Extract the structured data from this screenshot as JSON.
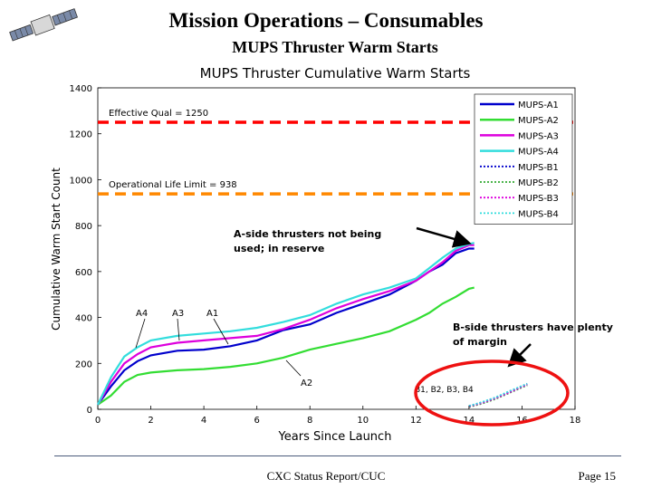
{
  "slide": {
    "title": "Mission Operations – Consumables",
    "subtitle": "MUPS Thruster Warm Starts",
    "footer_center": "CXC Status Report/CUC",
    "footer_right": "Page 15",
    "logo_icon": "satellite-icon"
  },
  "annotations": {
    "reserve_line1": "A-side thrusters not being",
    "reserve_line2": "used; in reserve",
    "margin_line1": "B-side thrusters have plenty",
    "margin_line2": "of margin",
    "b_label": "B1, B2, B3, B4",
    "a4": "A4",
    "a3": "A3",
    "a1": "A1",
    "a2": "A2"
  },
  "chart_data": {
    "type": "line",
    "title": "MUPS Thruster Cumulative Warm Starts",
    "xlabel": "Years Since Launch",
    "ylabel": "Cumulative Warm Start Count",
    "xlim": [
      0,
      18
    ],
    "ylim": [
      0,
      1400
    ],
    "xticks": [
      0,
      2,
      4,
      6,
      8,
      10,
      12,
      14,
      16,
      18
    ],
    "yticks": [
      0,
      200,
      400,
      600,
      800,
      1000,
      1200,
      1400
    ],
    "grid": false,
    "legend_position": "top-right",
    "reference_lines": [
      {
        "label": "Effective Qual = 1250",
        "y": 1250,
        "color": "#ff0000"
      },
      {
        "label": "Operational Life Limit = 938",
        "y": 938,
        "color": "#ff8800"
      }
    ],
    "series": [
      {
        "name": "MUPS-A1",
        "color": "#0000cc",
        "style": "solid",
        "x": [
          0,
          0.5,
          1,
          1.5,
          2,
          3,
          4,
          5,
          6,
          7,
          8,
          9,
          10,
          11,
          12,
          12.5,
          13,
          13.5,
          14,
          14.2
        ],
        "y": [
          20,
          100,
          170,
          210,
          235,
          255,
          260,
          275,
          300,
          345,
          370,
          420,
          460,
          500,
          560,
          600,
          630,
          680,
          700,
          700
        ]
      },
      {
        "name": "MUPS-A2",
        "color": "#33dd33",
        "style": "solid",
        "x": [
          0,
          0.5,
          1,
          1.5,
          2,
          3,
          4,
          5,
          6,
          7,
          8,
          9,
          10,
          11,
          12,
          12.5,
          13,
          13.5,
          14,
          14.2
        ],
        "y": [
          20,
          60,
          120,
          150,
          160,
          170,
          175,
          185,
          200,
          225,
          260,
          285,
          310,
          340,
          390,
          420,
          460,
          490,
          525,
          530
        ]
      },
      {
        "name": "MUPS-A3",
        "color": "#dd00dd",
        "style": "solid",
        "x": [
          0,
          0.5,
          1,
          1.5,
          2,
          3,
          4,
          5,
          6,
          7,
          8,
          9,
          10,
          11,
          12,
          12.5,
          13,
          13.5,
          14,
          14.2
        ],
        "y": [
          20,
          120,
          200,
          240,
          270,
          290,
          300,
          310,
          320,
          350,
          390,
          440,
          480,
          515,
          560,
          600,
          640,
          690,
          715,
          715
        ]
      },
      {
        "name": "MUPS-A4",
        "color": "#33dddd",
        "style": "solid",
        "x": [
          0,
          0.5,
          1,
          1.5,
          2,
          3,
          4,
          5,
          6,
          7,
          8,
          9,
          10,
          11,
          12,
          12.5,
          13,
          13.5,
          14,
          14.2
        ],
        "y": [
          20,
          140,
          230,
          270,
          300,
          320,
          330,
          340,
          355,
          380,
          410,
          460,
          500,
          530,
          570,
          615,
          660,
          700,
          720,
          725
        ]
      },
      {
        "name": "MUPS-B1",
        "color": "#0000cc",
        "style": "dotted",
        "x": [
          14,
          14.5,
          15,
          15.5,
          16,
          16.2
        ],
        "y": [
          15,
          30,
          50,
          75,
          100,
          110
        ]
      },
      {
        "name": "MUPS-B2",
        "color": "#33aa33",
        "style": "dotted",
        "x": [
          14,
          14.5,
          15,
          15.5,
          16,
          16.2
        ],
        "y": [
          10,
          25,
          45,
          70,
          95,
          105
        ]
      },
      {
        "name": "MUPS-B3",
        "color": "#dd00dd",
        "style": "dotted",
        "x": [
          14,
          14.5,
          15,
          15.5,
          16,
          16.2
        ],
        "y": [
          12,
          28,
          48,
          72,
          98,
          108
        ]
      },
      {
        "name": "MUPS-B4",
        "color": "#33dddd",
        "style": "dotted",
        "x": [
          14,
          14.5,
          15,
          15.5,
          16,
          16.2
        ],
        "y": [
          14,
          32,
          52,
          78,
          102,
          112
        ]
      }
    ]
  }
}
